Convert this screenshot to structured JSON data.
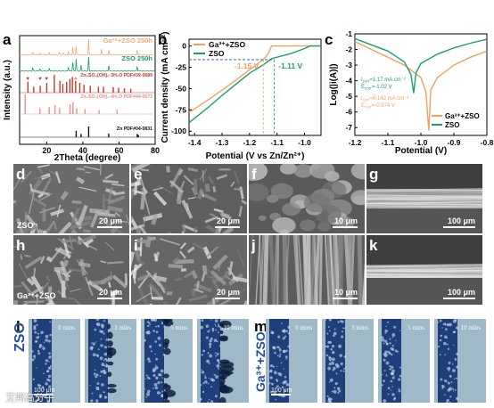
{
  "panel_labels": {
    "a": "a",
    "b": "b",
    "c": "c",
    "d": "d",
    "e": "e",
    "f": "f",
    "g": "g",
    "h": "h",
    "i": "i",
    "j": "j",
    "k": "k",
    "l": "l",
    "m": "m"
  },
  "chart_data": [
    {
      "type": "line",
      "panel": "a",
      "xlabel": "2Theta (degree)",
      "ylabel": "Intensity (a.u.)",
      "xlim": [
        5,
        80
      ],
      "xticks": [
        20,
        40,
        60,
        80
      ],
      "series": [
        {
          "name": "Ga³⁺+ZSO 250h",
          "color": "#f0a878",
          "peaks": [
            [
              12.3,
              0.15
            ],
            [
              16.2,
              0.12
            ],
            [
              21.5,
              0.18
            ],
            [
              27.0,
              0.15
            ],
            [
              29.2,
              0.12
            ],
            [
              32.0,
              0.25
            ],
            [
              34.4,
              0.55
            ],
            [
              36.3,
              0.6
            ],
            [
              43.2,
              1.0
            ],
            [
              50.3,
              0.4
            ],
            [
              54.4,
              0.35
            ],
            [
              70.1,
              0.3
            ]
          ]
        },
        {
          "name": "ZSO 250h",
          "color": "#1a9e6a",
          "peaks": [
            [
              12.3,
              0.2
            ],
            [
              16.2,
              0.15
            ],
            [
              21.5,
              0.22
            ],
            [
              32.0,
              0.3
            ],
            [
              34.4,
              0.7
            ],
            [
              36.3,
              0.9
            ],
            [
              39.0,
              0.4
            ],
            [
              43.2,
              1.0
            ],
            [
              54.4,
              0.45
            ],
            [
              70.1,
              0.35
            ]
          ]
        },
        {
          "name": "Zn₄SO₄(OH)₆·3H₂O PDF#39-0689",
          "color": "#c0392b",
          "peaks": [
            [
              9.6,
              0.55
            ],
            [
              12.8,
              0.3
            ],
            [
              16.4,
              0.35
            ],
            [
              20.0,
              0.5
            ],
            [
              24.2,
              0.9
            ],
            [
              27.3,
              0.6
            ],
            [
              28.9,
              0.45
            ],
            [
              31.0,
              0.55
            ],
            [
              32.8,
              0.7
            ],
            [
              34.2,
              0.8
            ],
            [
              36.0,
              0.6
            ],
            [
              38.3,
              0.5
            ],
            [
              40.6,
              0.4
            ],
            [
              44.1,
              0.35
            ],
            [
              48.6,
              0.3
            ],
            [
              51.4,
              0.3
            ],
            [
              56.8,
              0.28
            ],
            [
              59.8,
              0.25
            ],
            [
              63.0,
              0.22
            ],
            [
              66.5,
              0.2
            ]
          ]
        },
        {
          "name": "Zn₄SO₄(OH)₆·4H₂O PDF#44-0673",
          "color": "#e89090",
          "peaks": [
            [
              8.1,
              1.0
            ],
            [
              16.3,
              0.3
            ],
            [
              21.4,
              0.35
            ],
            [
              24.6,
              0.45
            ],
            [
              27.1,
              0.3
            ],
            [
              32.9,
              0.5
            ],
            [
              34.5,
              0.6
            ],
            [
              36.6,
              0.3
            ],
            [
              41.2,
              0.25
            ],
            [
              49.0,
              0.2
            ],
            [
              58.9,
              0.22
            ]
          ]
        },
        {
          "name": "Zn PDF#04-0831",
          "color": "#111111",
          "peaks": [
            [
              36.3,
              0.6
            ],
            [
              39.0,
              0.3
            ],
            [
              43.2,
              1.0
            ],
            [
              54.3,
              0.35
            ],
            [
              70.1,
              0.3
            ],
            [
              70.7,
              0.2
            ]
          ]
        }
      ],
      "marker_legend": [
        {
          "symbol": "♥",
          "label": "Zn₄SO₄(OH)₆·3H₂O PDF#39-0689",
          "color": "#c0392b"
        },
        {
          "symbol": "♣",
          "label": "Zn₄SO₄(OH)₆·4H₂O PDF#44-0673",
          "color": "#e89090"
        }
      ]
    },
    {
      "type": "line",
      "panel": "b",
      "xlabel": "Potential (V vs Zn/Zn²⁺)",
      "ylabel": "Current density (mA cm⁻²)",
      "xlim": [
        -1.42,
        -0.94
      ],
      "ylim": [
        -105,
        8
      ],
      "xticks": [
        -1.4,
        -1.3,
        -1.2,
        -1.1,
        -1.0
      ],
      "yticks": [
        0,
        -25,
        -50,
        -75,
        -100
      ],
      "legend": [
        "Ga³⁺+ZSO",
        "ZSO"
      ],
      "annotations": [
        "-1.15 V",
        "-1.11 V"
      ],
      "series": [
        {
          "name": "Ga³⁺+ZSO",
          "color": "#f0a060",
          "x": [
            -1.42,
            -1.35,
            -1.3,
            -1.25,
            -1.2,
            -1.15,
            -1.13,
            -1.12,
            -0.94
          ],
          "y": [
            -78,
            -63,
            -52,
            -40,
            -28,
            -16,
            -8,
            0,
            0
          ]
        },
        {
          "name": "ZSO",
          "color": "#1a9e6a",
          "x": [
            -1.42,
            -1.35,
            -1.3,
            -1.25,
            -1.2,
            -1.15,
            -1.12,
            -1.11,
            -1.05,
            -1.0,
            -0.98,
            -0.94
          ],
          "y": [
            -90,
            -72,
            -58,
            -45,
            -32,
            -22,
            -15,
            -14,
            -9,
            -3,
            0,
            0
          ]
        }
      ]
    },
    {
      "type": "line",
      "panel": "c",
      "xlabel": "Potential (V)",
      "ylabel": "Log(|i(A)|)",
      "xlim": [
        -1.2,
        -0.8
      ],
      "ylim": [
        -7.5,
        -1.0
      ],
      "xticks": [
        -1.2,
        -1.1,
        -1.0,
        -0.9,
        -0.8
      ],
      "yticks": [
        -1,
        -2,
        -3,
        -4,
        -5,
        -6,
        -7
      ],
      "legend": [
        "Ga³⁺+ZSO",
        "ZSO"
      ],
      "annotations": [
        {
          "line1": "I",
          "sub1": "corr",
          "rest1": "=1.17 mA cm⁻²",
          "line2": "E",
          "sub2": "corr",
          "rest2": "=-1.02 V",
          "color": "#1a9e6a"
        },
        {
          "line1": "I",
          "sub1": "corr",
          "rest1": "=0.142 mA cm⁻²",
          "line2": "E",
          "sub2": "corr",
          "rest2": "=-0.974 V",
          "color": "#f0a060"
        }
      ],
      "series": [
        {
          "name": "Ga³⁺+ZSO",
          "color": "#f0a060",
          "x": [
            -1.2,
            -1.15,
            -1.1,
            -1.05,
            -1.0,
            -0.985,
            -0.976,
            -0.97,
            -0.95,
            -0.9,
            -0.85,
            -0.8
          ],
          "y": [
            -1.5,
            -2.0,
            -2.5,
            -3.0,
            -3.8,
            -4.7,
            -7.2,
            -4.6,
            -3.8,
            -3.0,
            -2.5,
            -2.1
          ]
        },
        {
          "name": "ZSO",
          "color": "#1a9e6a",
          "x": [
            -1.2,
            -1.15,
            -1.1,
            -1.05,
            -1.03,
            -1.022,
            -1.015,
            -1.0,
            -0.95,
            -0.9,
            -0.85,
            -0.8
          ],
          "y": [
            -1.3,
            -1.7,
            -2.1,
            -2.8,
            -3.6,
            -4.8,
            -3.5,
            -2.9,
            -2.3,
            -1.9,
            -1.6,
            -1.35
          ]
        }
      ]
    }
  ],
  "sem": {
    "d": {
      "scale": "20 μm",
      "label": "ZSO"
    },
    "e": {
      "scale": "20 μm"
    },
    "f": {
      "scale": "10 μm"
    },
    "g": {
      "scale": "100 μm"
    },
    "h": {
      "scale": "20 μm",
      "label": "Ga³⁺+ZSO"
    },
    "i": {
      "scale": "20 μm"
    },
    "j": {
      "scale": "10 μm"
    },
    "k": {
      "scale": "100 μm"
    }
  },
  "optical": {
    "l": {
      "label": "ZSO",
      "times": [
        "0 mins",
        "3 mins",
        "5 mins",
        "10 mins"
      ],
      "scale": "100 μm"
    },
    "m": {
      "label": "Ga³⁺+ZSO",
      "times": [
        "0 mins",
        "3 mins",
        "5 mins",
        "10 mins"
      ],
      "scale": "100 μm"
    }
  },
  "watermark": "艾邦高分子",
  "colors": {
    "ga": "#f0a060",
    "zso": "#1a9e6a",
    "pdf39": "#c0392b",
    "pdf44": "#e89090"
  }
}
